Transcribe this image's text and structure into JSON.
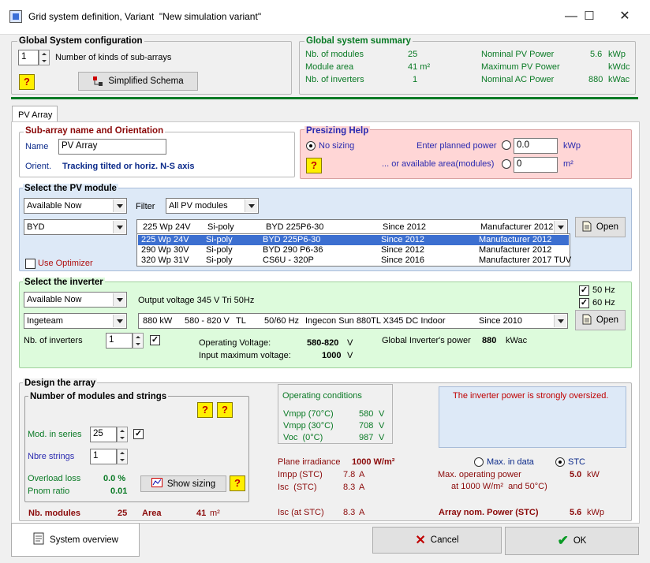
{
  "window": {
    "title": "Grid system definition, Variant  \"New simulation variant\"",
    "buttons": [
      "—",
      "☐",
      "✕"
    ]
  },
  "global_config": {
    "title": "Global System configuration",
    "subarrays": "1",
    "subarrays_label": "Number of kinds of sub-arrays",
    "schema_button": "Simplified Schema",
    "help": "?"
  },
  "summary": {
    "title": "Global system summary",
    "rows": [
      {
        "label": "Nb. of modules",
        "value": "25",
        "label2": "Nominal PV Power",
        "value2": "5.6",
        "unit2": "kWp"
      },
      {
        "label": "Module area",
        "value": "41 m²",
        "label2": "Maximum PV Power",
        "value2": "",
        "unit2": "kWdc"
      },
      {
        "label": "Nb. of inverters",
        "value": "1",
        "label2": "Nominal AC Power",
        "value2": "880",
        "unit2": "kWac"
      }
    ]
  },
  "tab": "PV Array",
  "subarray": {
    "title": "Sub-array name and Orientation",
    "name_label": "Name",
    "name_value": "PV Array",
    "orient_label": "Orient.",
    "orient_value": "Tracking tilted or horiz. N-S axis"
  },
  "presizing": {
    "title": "Presizing Help",
    "no_sizing": "No sizing",
    "planned_label": "Enter planned power",
    "planned_value": "0.0",
    "planned_unit": "kWp",
    "area_label": "...  or available area(modules)",
    "area_value": "0",
    "area_unit": "m²"
  },
  "pv_module": {
    "title": "Select the PV module",
    "availability": "Available Now",
    "filter_label": "Filter",
    "filter_value": "All PV modules",
    "manufacturer": "BYD",
    "selected": {
      "power": "225 Wp 24V",
      "tech": "Si-poly",
      "model": "BYD 225P6-30",
      "since": "Since 2012",
      "mfr": "Manufacturer 2012"
    },
    "list": [
      {
        "power": "225 Wp 24V",
        "tech": "Si-poly",
        "model": "BYD 225P6-30",
        "since": "Since 2012",
        "mfr": "Manufacturer 2012"
      },
      {
        "power": "290 Wp 30V",
        "tech": "Si-poly",
        "model": "BYD 290 P6-36",
        "since": "Since 2012",
        "mfr": "Manufacturer 2012"
      },
      {
        "power": "320 Wp 31V",
        "tech": "Si-poly",
        "model": "CS6U - 320P",
        "since": "Since 2016",
        "mfr": "Manufacturer 2017 TUV"
      }
    ],
    "open_button": "Open",
    "optimizer": "Use Optimizer"
  },
  "inverter": {
    "title": "Select the inverter",
    "availability": "Available Now",
    "output_voltage": "Output voltage 345 V Tri 50Hz",
    "hz50": "50 Hz",
    "hz60": "60 Hz",
    "manufacturer": "Ingeteam",
    "selected": {
      "power": "880 kW",
      "volt": "580 - 820 V",
      "tl": "TL",
      "freq": "50/60 Hz",
      "model": "Ingecon Sun 880TL X345 DC Indoor",
      "since": "Since 2010"
    },
    "open_button": "Open",
    "nb_label": "Nb. of inverters",
    "nb_value": "1",
    "op_voltage_label": "Operating Voltage:",
    "op_voltage_value": "580-820",
    "op_voltage_unit": "V",
    "max_voltage_label": "Input maximum voltage:",
    "max_voltage_value": "1000",
    "max_voltage_unit": "V",
    "global_power_label": "Global Inverter's power",
    "global_power_value": "880",
    "global_power_unit": "kWac"
  },
  "design": {
    "title": "Design the array",
    "strings_title": "Number of modules and strings",
    "mod_series_label": "Mod. in series",
    "mod_series_value": "25",
    "nbre_strings_label": "Nbre strings",
    "nbre_strings_value": "1",
    "overload_label": "Overload loss",
    "overload_value": "0.0 %",
    "pnom_label": "Pnom ratio",
    "pnom_value": "0.01",
    "show_sizing": "Show sizing",
    "nb_modules_label": "Nb. modules",
    "nb_modules_value": "25",
    "area_label": "Area",
    "area_value": "41",
    "area_unit": "m²",
    "op_cond_title": "Operating conditions",
    "op_cond": [
      {
        "label": "Vmpp (70°C)",
        "value": "580",
        "unit": "V"
      },
      {
        "label": "Vmpp (30°C)",
        "value": "708",
        "unit": "V"
      },
      {
        "label": "Voc  (0°C)",
        "value": "987",
        "unit": "V"
      }
    ],
    "message": "The inverter power is strongly oversized.",
    "plane_irr_label": "Plane irradiance",
    "plane_irr_value": "1000 W/m²",
    "impp_label": "Impp (STC)",
    "impp_value": "7.8",
    "impp_unit": "A",
    "isc_label": "Isc  (STC)",
    "isc_value": "8.3",
    "isc_unit": "A",
    "isc_at_label": "Isc (at STC)",
    "isc_at_value": "8.3",
    "isc_at_unit": "A",
    "max_in_data": "Max. in data",
    "stc": "STC",
    "max_op_power_label": "Max. operating power",
    "max_op_power_sub": "at 1000 W/m²  and 50°C)",
    "max_op_power_value": "5.0",
    "max_op_power_unit": "kW",
    "array_nom_label": "Array nom. Power (STC)",
    "array_nom_value": "5.6",
    "array_nom_unit": "kWp"
  },
  "footer": {
    "system_overview": "System overview",
    "cancel": "Cancel",
    "ok": "OK"
  }
}
